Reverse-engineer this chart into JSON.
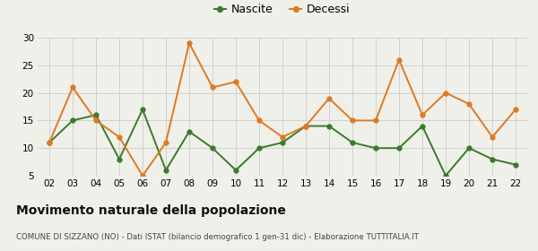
{
  "years": [
    "02",
    "03",
    "04",
    "05",
    "06",
    "07",
    "08",
    "09",
    "10",
    "11",
    "12",
    "13",
    "14",
    "15",
    "16",
    "17",
    "18",
    "19",
    "20",
    "21",
    "22"
  ],
  "nascite": [
    11,
    15,
    16,
    8,
    17,
    6,
    13,
    10,
    6,
    10,
    11,
    14,
    14,
    11,
    10,
    10,
    14,
    5,
    10,
    8,
    7
  ],
  "decessi": [
    11,
    21,
    15,
    12,
    5,
    11,
    29,
    21,
    22,
    15,
    12,
    14,
    19,
    15,
    15,
    26,
    16,
    20,
    18,
    12,
    17
  ],
  "nascite_color": "#3a7a2a",
  "decessi_color": "#e07820",
  "ylim": [
    5,
    30
  ],
  "yticks": [
    5,
    10,
    15,
    20,
    25,
    30
  ],
  "title": "Movimento naturale della popolazione",
  "subtitle": "COMUNE DI SIZZANO (NO) - Dati ISTAT (bilancio demografico 1 gen-31 dic) - Elaborazione TUTTITALIA.IT",
  "legend_nascite": "Nascite",
  "legend_decessi": "Decessi",
  "bg_color": "#f0f0eb",
  "grid_color": "#d0d0d0"
}
